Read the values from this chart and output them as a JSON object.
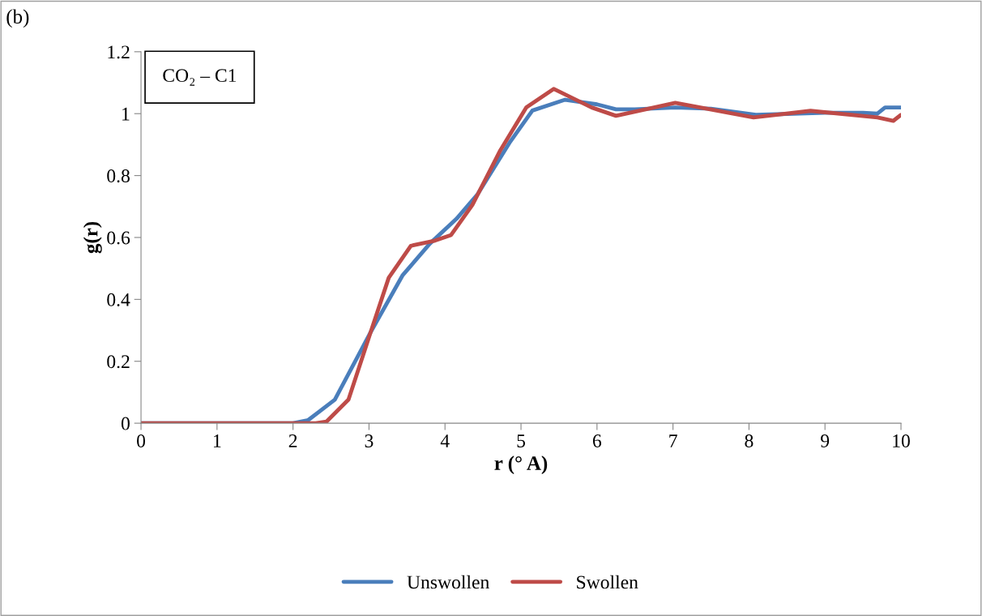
{
  "chart_data": {
    "type": "line",
    "xlabel": "r (° A)",
    "ylabel": "g(r)",
    "annotations": [
      "(b)",
      "CO₂ – C1"
    ],
    "xlim": [
      0,
      10
    ],
    "xticks": [
      0,
      1,
      2,
      3,
      4,
      5,
      6,
      7,
      8,
      9,
      10
    ],
    "ylim": [
      0,
      1.2
    ],
    "yticks": [
      0,
      0.2,
      0.4,
      0.6,
      0.8,
      1,
      1.2
    ],
    "grid": false,
    "legend": "bottom",
    "marker": "none",
    "line_style": "solid",
    "series": [
      {
        "name": "Unswollen",
        "color": "#4a7ebb",
        "x": [
          0,
          1,
          2,
          2.2,
          2.55,
          3.02,
          3.44,
          3.8,
          4.15,
          4.43,
          4.86,
          5.15,
          5.58,
          6,
          6.25,
          6.5,
          7.03,
          7.5,
          8.09,
          9,
          9.5,
          9.69,
          9.79,
          10
        ],
        "values": [
          0,
          0,
          0,
          0.01,
          0.076,
          0.293,
          0.477,
          0.58,
          0.66,
          0.74,
          0.91,
          1.01,
          1.045,
          1.03,
          1.014,
          1.014,
          1.02,
          1.016,
          0.996,
          1.003,
          1.003,
          1.0,
          1.02,
          1.02
        ]
      },
      {
        "name": "Swollen",
        "color": "#be4b48",
        "x": [
          0,
          1,
          2,
          2.3,
          2.44,
          2.73,
          3.02,
          3.26,
          3.55,
          3.87,
          4.08,
          4.36,
          4.72,
          5.07,
          5.43,
          5.93,
          6.25,
          7.03,
          8.06,
          8.81,
          9.69,
          9.9,
          10
        ],
        "values": [
          0,
          0,
          0,
          0,
          0.005,
          0.076,
          0.293,
          0.47,
          0.573,
          0.59,
          0.608,
          0.705,
          0.878,
          1.02,
          1.08,
          1.02,
          0.993,
          1.035,
          0.988,
          1.009,
          0.988,
          0.977,
          0.996
        ]
      }
    ]
  }
}
